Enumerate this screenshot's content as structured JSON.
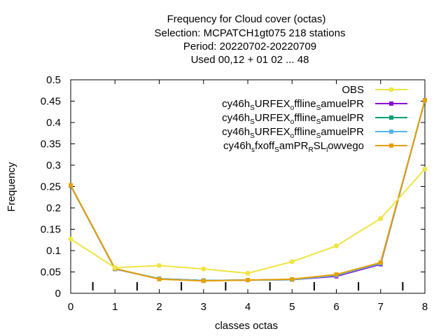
{
  "chart_data": {
    "type": "line",
    "title_lines": [
      "Frequency  for Cloud cover (octas)",
      "Selection: MCPATCH1gt075    218 stations",
      "Period: 20220702-20220709",
      "Used  00,12  + 01 02 ... 48"
    ],
    "xlabel": "classes octas",
    "ylabel": "Frequency",
    "xlim": [
      0,
      8
    ],
    "ylim": [
      0,
      0.5
    ],
    "x_ticks": [
      "0",
      "1",
      "2",
      "3",
      "4",
      "5",
      "6",
      "7",
      "8"
    ],
    "y_ticks": [
      "0",
      "0.05",
      "0.1",
      "0.15",
      "0.2",
      "0.25",
      "0.3",
      "0.35",
      "0.4",
      "0.45",
      "0.5"
    ],
    "x": [
      0,
      1,
      2,
      3,
      4,
      5,
      6,
      7,
      8
    ],
    "legend_position": "top-right",
    "series": [
      {
        "name": "OBS",
        "color": "#f0e442",
        "values": [
          0.127,
          0.06,
          0.065,
          0.057,
          0.047,
          0.074,
          0.111,
          0.175,
          0.291
        ]
      },
      {
        "name": "cy46h_SURFEX_offline_SamuelPR",
        "color": "#8b00d4",
        "values": [
          0.252,
          0.057,
          0.034,
          0.03,
          0.031,
          0.032,
          0.04,
          0.068,
          0.452
        ]
      },
      {
        "name": "cy46h_SURFEX_offline_SamuelPR",
        "color": "#009e73",
        "values": [
          0.252,
          0.057,
          0.034,
          0.03,
          0.031,
          0.032,
          0.042,
          0.07,
          0.452
        ]
      },
      {
        "name": "cy46h_SURFEX_offline_SamuelPR",
        "color": "#56b4e9",
        "values": [
          0.252,
          0.057,
          0.034,
          0.03,
          0.031,
          0.032,
          0.042,
          0.07,
          0.452
        ]
      },
      {
        "name": "cy46h_sfxoff_SamPR_RSL_lowvego",
        "color": "#e69f00",
        "values": [
          0.253,
          0.058,
          0.033,
          0.029,
          0.031,
          0.033,
          0.044,
          0.072,
          0.452
        ]
      }
    ]
  }
}
